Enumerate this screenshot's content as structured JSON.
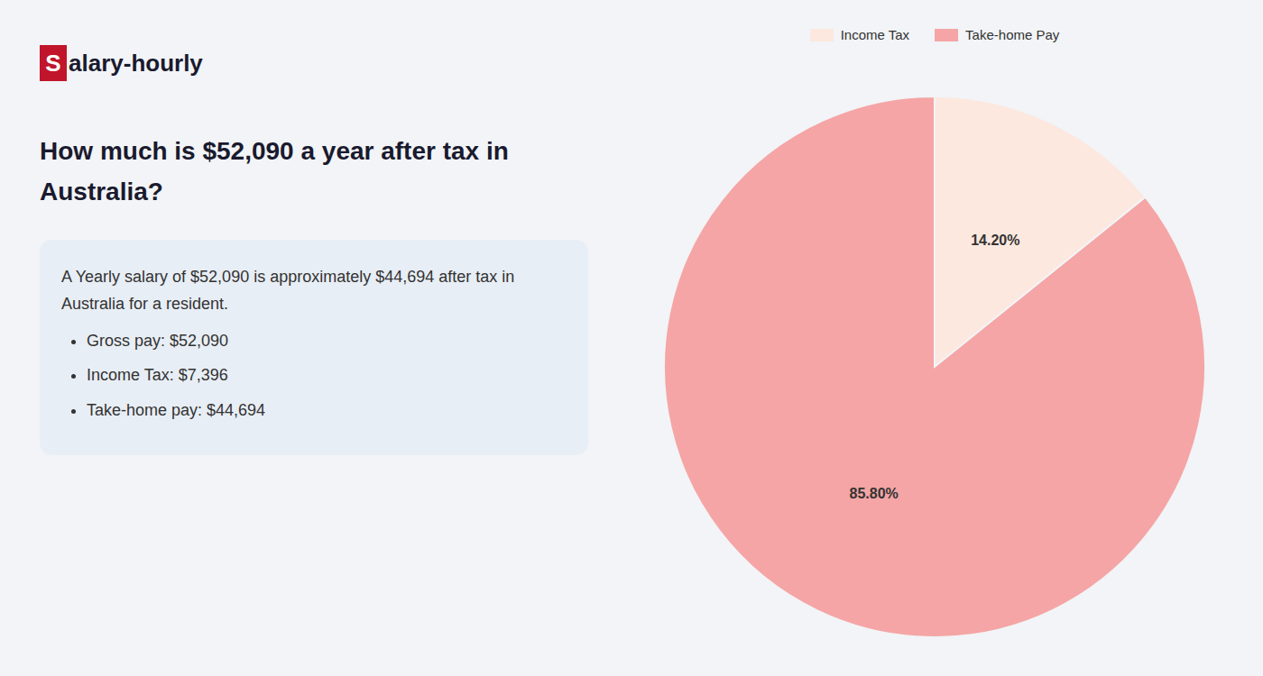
{
  "chart_data": {
    "type": "pie",
    "title": "How much is $52,090 a year after tax in Australia?",
    "categories": [
      "Income Tax",
      "Take-home Pay"
    ],
    "values": [
      14.2,
      85.8
    ],
    "value_labels": [
      "14.20%",
      "85.80%"
    ],
    "colors": [
      "#fce8de",
      "#f5a5a5"
    ],
    "data_labels": true,
    "legend": "top",
    "annotations": [
      "Salary-hourly",
      "A Yearly salary of $52,090 is approximately $44,694 after tax in Australia for a resident.",
      "Gross pay: $52,090",
      "Income Tax: $7,396",
      "Take-home pay: $44,694"
    ]
  }
}
